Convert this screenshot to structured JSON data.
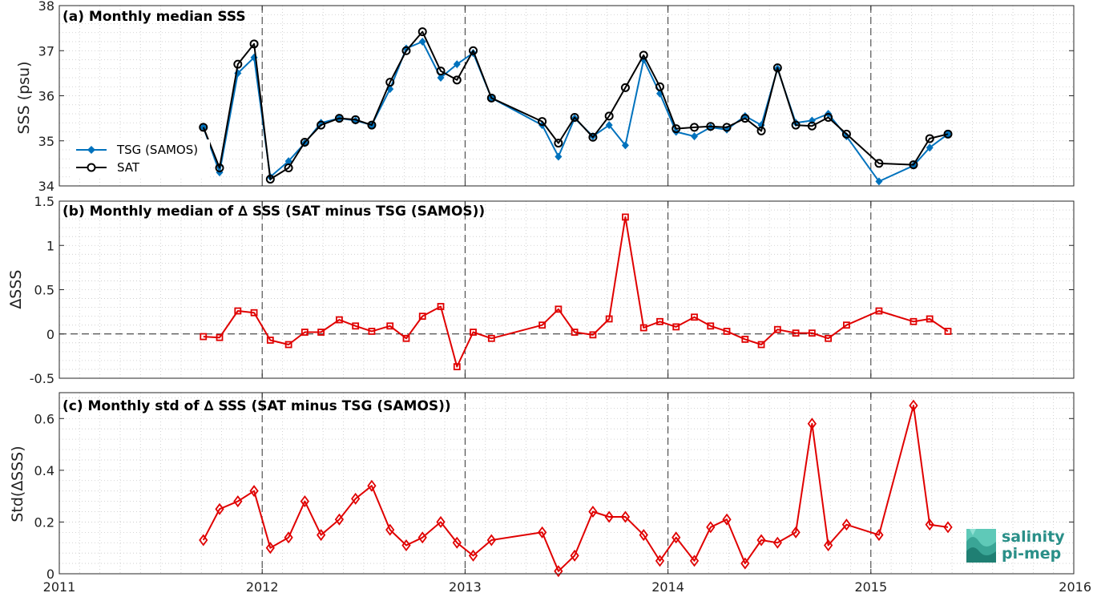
{
  "colors": {
    "tsg": "#0072BD",
    "sat": "#000000",
    "delta": "#e00000",
    "axis": "#262626",
    "grid": "#c8c8c8",
    "logo": "#2a8f88"
  },
  "logo": {
    "line1": "salinity",
    "line2": "pi-mep"
  },
  "xaxis": {
    "ticks": [
      2011,
      2012,
      2013,
      2014,
      2015,
      2016
    ],
    "range": [
      2011,
      2016
    ],
    "year_lines": [
      2012,
      2013,
      2014,
      2015
    ]
  },
  "chart_data": [
    {
      "type": "line",
      "title": "(a) Monthly median SSS",
      "ylabel": "SSS (psu)",
      "ylim": [
        34,
        38
      ],
      "yticks": [
        34,
        35,
        36,
        37,
        38
      ],
      "grid": true,
      "legend": "left",
      "series": [
        {
          "name": "TSG (SAMOS)",
          "marker": "diamond",
          "x": [
            2011.71,
            2011.79,
            2011.88,
            2011.96,
            2012.04,
            2012.13,
            2012.21,
            2012.29,
            2012.38,
            2012.46,
            2012.54,
            2012.63,
            2012.71,
            2012.79,
            2012.88,
            2012.96,
            2013.04,
            2013.13,
            2013.38,
            2013.46,
            2013.54,
            2013.63,
            2013.71,
            2013.79,
            2013.88,
            2013.96,
            2014.04,
            2014.13,
            2014.21,
            2014.29,
            2014.38,
            2014.46,
            2014.54,
            2014.63,
            2014.71,
            2014.79,
            2014.88,
            2015.04,
            2015.21,
            2015.29,
            2015.38
          ],
          "values": [
            35.3,
            34.3,
            36.5,
            36.85,
            34.2,
            34.55,
            34.95,
            35.4,
            35.5,
            35.45,
            35.35,
            36.15,
            37.05,
            37.2,
            36.4,
            36.7,
            36.95,
            35.95,
            35.35,
            34.65,
            35.5,
            35.1,
            35.35,
            34.9,
            36.8,
            36.05,
            35.2,
            35.1,
            35.3,
            35.25,
            35.55,
            35.35,
            36.6,
            35.4,
            35.45,
            35.6,
            35.1,
            34.1,
            34.45,
            34.85,
            35.15
          ]
        },
        {
          "name": "SAT",
          "marker": "circle",
          "x": [
            2011.71,
            2011.79,
            2011.88,
            2011.96,
            2012.04,
            2012.13,
            2012.21,
            2012.29,
            2012.38,
            2012.46,
            2012.54,
            2012.63,
            2012.71,
            2012.79,
            2012.88,
            2012.96,
            2013.04,
            2013.13,
            2013.38,
            2013.46,
            2013.54,
            2013.63,
            2013.71,
            2013.79,
            2013.88,
            2013.96,
            2014.04,
            2014.13,
            2014.21,
            2014.29,
            2014.38,
            2014.46,
            2014.54,
            2014.63,
            2014.71,
            2014.79,
            2014.88,
            2015.04,
            2015.21,
            2015.29,
            2015.38
          ],
          "values": [
            35.3,
            34.4,
            36.7,
            37.15,
            34.15,
            34.4,
            34.97,
            35.35,
            35.5,
            35.47,
            35.35,
            36.3,
            37.0,
            37.42,
            36.55,
            36.35,
            37.0,
            35.95,
            35.43,
            34.95,
            35.52,
            35.08,
            35.55,
            36.18,
            36.9,
            36.2,
            35.27,
            35.3,
            35.32,
            35.3,
            35.5,
            35.22,
            36.62,
            35.35,
            35.33,
            35.52,
            35.15,
            34.5,
            34.47,
            35.05,
            35.15
          ]
        }
      ]
    },
    {
      "type": "line",
      "title": "(b) Monthly median of ∆ SSS (SAT minus TSG (SAMOS))",
      "ylabel": "∆SSS",
      "ylim": [
        -0.5,
        1.5
      ],
      "yticks": [
        -0.5,
        0,
        0.5,
        1,
        1.5
      ],
      "grid": true,
      "series": [
        {
          "marker": "square",
          "x": [
            2011.71,
            2011.79,
            2011.88,
            2011.96,
            2012.04,
            2012.13,
            2012.21,
            2012.29,
            2012.38,
            2012.46,
            2012.54,
            2012.63,
            2012.71,
            2012.79,
            2012.88,
            2012.96,
            2013.04,
            2013.13,
            2013.38,
            2013.46,
            2013.54,
            2013.63,
            2013.71,
            2013.79,
            2013.88,
            2013.96,
            2014.04,
            2014.13,
            2014.21,
            2014.29,
            2014.38,
            2014.46,
            2014.54,
            2014.63,
            2014.71,
            2014.79,
            2014.88,
            2015.04,
            2015.21,
            2015.29,
            2015.38
          ],
          "values": [
            -0.03,
            -0.04,
            0.26,
            0.24,
            -0.07,
            -0.12,
            0.02,
            0.02,
            0.16,
            0.09,
            0.03,
            0.09,
            -0.05,
            0.2,
            0.31,
            -0.37,
            0.02,
            -0.05,
            0.1,
            0.28,
            0.02,
            -0.01,
            0.17,
            1.32,
            0.07,
            0.14,
            0.08,
            0.19,
            0.09,
            0.03,
            -0.06,
            -0.12,
            0.05,
            0.01,
            0.01,
            -0.05,
            0.1,
            0.26,
            0.14,
            0.17,
            0.03
          ]
        }
      ]
    },
    {
      "type": "line",
      "title": "(c) Monthly std of ∆ SSS (SAT minus TSG (SAMOS))",
      "ylabel": "Std(∆SSS)",
      "ylim": [
        0,
        0.7
      ],
      "yticks": [
        0,
        0.2,
        0.4,
        0.6
      ],
      "grid": true,
      "series": [
        {
          "marker": "diamond-open",
          "x": [
            2011.71,
            2011.79,
            2011.88,
            2011.96,
            2012.04,
            2012.13,
            2012.21,
            2012.29,
            2012.38,
            2012.46,
            2012.54,
            2012.63,
            2012.71,
            2012.79,
            2012.88,
            2012.96,
            2013.04,
            2013.13,
            2013.38,
            2013.46,
            2013.54,
            2013.63,
            2013.71,
            2013.79,
            2013.88,
            2013.96,
            2014.04,
            2014.13,
            2014.21,
            2014.29,
            2014.38,
            2014.46,
            2014.54,
            2014.63,
            2014.71,
            2014.79,
            2014.88,
            2015.04,
            2015.21,
            2015.29,
            2015.38
          ],
          "values": [
            0.13,
            0.25,
            0.28,
            0.32,
            0.1,
            0.14,
            0.28,
            0.15,
            0.21,
            0.29,
            0.34,
            0.17,
            0.11,
            0.14,
            0.2,
            0.12,
            0.07,
            0.13,
            0.16,
            0.01,
            0.07,
            0.24,
            0.22,
            0.22,
            0.15,
            0.05,
            0.14,
            0.05,
            0.18,
            0.21,
            0.04,
            0.13,
            0.12,
            0.16,
            0.58,
            0.11,
            0.19,
            0.15,
            0.65,
            0.19,
            0.18
          ]
        }
      ]
    }
  ]
}
